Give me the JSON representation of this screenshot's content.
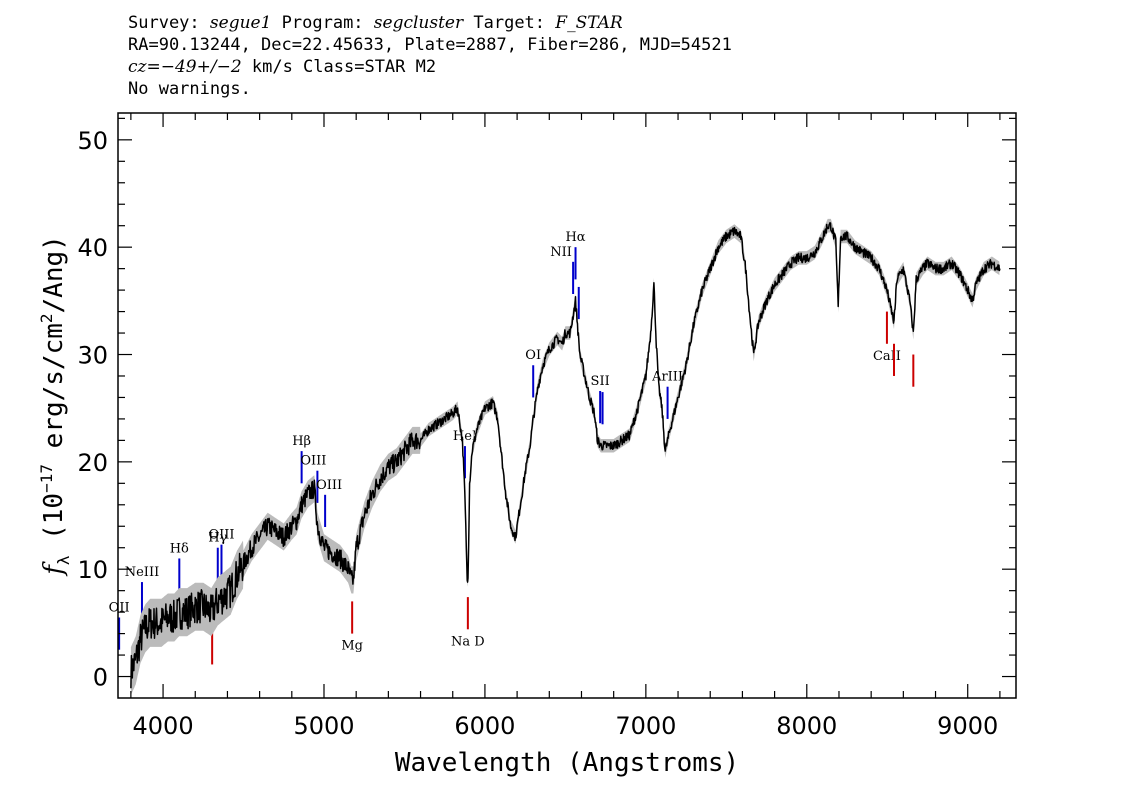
{
  "header": {
    "line1_survey_label": "Survey:",
    "line1_survey": "segue1",
    "line1_program_label": "Program:",
    "line1_program": "segcluster",
    "line1_target_label": "Target:",
    "line1_target": "F_STAR",
    "line2": "RA=90.13244, Dec=22.45633, Plate=2887, Fiber=286, MJD=54521",
    "line3_cz": "cz=−49+/−2",
    "line3_rest": " km/s Class=STAR M2",
    "line4": "No warnings."
  },
  "chart_data": {
    "type": "line",
    "xlabel": "Wavelength (Angstroms)",
    "ylabel": "fλ (10⁻¹⁷ erg/s/cm²/Ang)",
    "xlim": [
      3720,
      9300
    ],
    "ylim": [
      -2,
      52.5
    ],
    "xticks": [
      4000,
      5000,
      6000,
      7000,
      8000,
      9000
    ],
    "yticks": [
      0,
      10,
      20,
      30,
      40,
      50
    ],
    "grid": false,
    "colors": {
      "spectrum": "#000000",
      "error_band": "#bbbbbb",
      "emission_marker": "#0000cc",
      "absorption_marker": "#cc0000"
    },
    "series": [
      {
        "x": [
          3800,
          3830,
          3860,
          3890,
          3920,
          3950,
          3990,
          4030,
          4070,
          4100,
          4150,
          4200,
          4250,
          4300,
          4340,
          4380,
          4420,
          4460,
          4500,
          4550,
          4600,
          4650,
          4700,
          4750,
          4800,
          4830,
          4861,
          4900,
          4940,
          4960,
          5000,
          5050,
          5100,
          5150,
          5170,
          5183,
          5200,
          5250,
          5300,
          5350,
          5400,
          5450,
          5500,
          5550,
          5600,
          5650,
          5700,
          5750,
          5800,
          5830,
          5860,
          5875,
          5890,
          5895,
          5905,
          5920,
          5950,
          6000,
          6050,
          6080,
          6100,
          6130,
          6160,
          6190,
          6220,
          6250,
          6280,
          6300,
          6330,
          6360,
          6400,
          6450,
          6480,
          6500,
          6530,
          6563,
          6590,
          6620,
          6650,
          6680,
          6700,
          6720,
          6750,
          6800,
          6850,
          6900,
          6950,
          7000,
          7030,
          7050,
          7065,
          7080,
          7100,
          7120,
          7150,
          7200,
          7250,
          7300,
          7350,
          7400,
          7450,
          7500,
          7550,
          7590,
          7620,
          7650,
          7670,
          7700,
          7750,
          7800,
          7850,
          7900,
          7950,
          8000,
          8050,
          8100,
          8130,
          8150,
          8180,
          8195,
          8210,
          8250,
          8300,
          8350,
          8400,
          8450,
          8498,
          8542,
          8560,
          8600,
          8640,
          8662,
          8680,
          8720,
          8750,
          8800,
          8850,
          8900,
          8950,
          9000,
          9030,
          9050,
          9100,
          9150,
          9200
        ],
        "y": [
          0.5,
          1.5,
          3.5,
          4.5,
          5.0,
          5.0,
          5.0,
          5.5,
          5.5,
          6.0,
          6.0,
          6.5,
          6.5,
          6.0,
          7.0,
          7.5,
          8.0,
          9.5,
          10.5,
          12.0,
          13.0,
          14.0,
          13.5,
          13.0,
          14.0,
          14.5,
          16.0,
          17.0,
          17.5,
          14.0,
          12.0,
          11.5,
          11.0,
          10.0,
          9.0,
          9.0,
          12.0,
          15.0,
          17.0,
          18.5,
          19.5,
          20.0,
          21.0,
          22.0,
          22.0,
          23.0,
          23.5,
          24.0,
          24.5,
          25.0,
          22.0,
          17.0,
          9.0,
          9.5,
          18.0,
          21.0,
          23.0,
          25.0,
          25.5,
          24.0,
          21.0,
          17.0,
          14.0,
          13.0,
          16.0,
          19.0,
          21.5,
          24.0,
          27.0,
          29.0,
          30.5,
          31.5,
          31.0,
          32.0,
          32.0,
          35.0,
          30.0,
          28.0,
          26.0,
          24.5,
          22.0,
          21.5,
          21.5,
          21.5,
          22.0,
          22.5,
          25.0,
          28.0,
          32.0,
          36.5,
          31.0,
          27.0,
          25.0,
          21.0,
          23.0,
          26.0,
          29.0,
          33.0,
          36.0,
          38.0,
          40.0,
          41.0,
          41.5,
          41.0,
          38.0,
          33.0,
          30.0,
          33.0,
          35.0,
          36.5,
          37.5,
          38.5,
          39.0,
          39.0,
          39.5,
          41.0,
          42.0,
          42.0,
          40.5,
          34.5,
          41.0,
          41.0,
          40.0,
          39.5,
          39.0,
          38.0,
          36.0,
          33.0,
          37.0,
          38.0,
          35.0,
          32.0,
          37.0,
          38.0,
          38.5,
          38.0,
          38.0,
          38.5,
          37.5,
          36.0,
          35.0,
          36.5,
          38.0,
          38.5,
          38.0
        ]
      }
    ],
    "emission_lines": [
      {
        "label": "OII",
        "x": 3727
      },
      {
        "label": "NeIII",
        "x": 3869
      },
      {
        "label": "Hδ",
        "x": 4101
      },
      {
        "label": "Hγ",
        "x": 4340
      },
      {
        "label": "OIII",
        "x": 4363
      },
      {
        "label": "Hβ",
        "x": 4861
      },
      {
        "label": "OIII",
        "x": 4959
      },
      {
        "label": "OIII",
        "x": 5007
      },
      {
        "label": "HeI",
        "x": 5876
      },
      {
        "label": "OI",
        "x": 6300
      },
      {
        "label": "NII",
        "x": 6548
      },
      {
        "label": "Hα",
        "x": 6563
      },
      {
        "label": "NII",
        "x": 6583
      },
      {
        "label": "SII",
        "x": 6716
      },
      {
        "label": "SII",
        "x": 6731
      },
      {
        "label": "ArIII",
        "x": 7135
      }
    ],
    "absorption_lines": [
      {
        "label": "",
        "x": 4305
      },
      {
        "label": "Mg",
        "x": 5175
      },
      {
        "label": "Na D",
        "x": 5894
      },
      {
        "label": "CaII",
        "x": 8498
      },
      {
        "label": "CaII",
        "x": 8542
      },
      {
        "label": "CaII",
        "x": 8662
      }
    ]
  }
}
